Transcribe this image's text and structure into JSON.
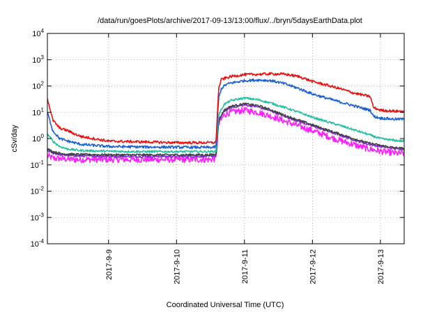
{
  "chart_data": {
    "type": "line",
    "title": "/data/run/goesPlots/archive/2017-09-13/13:00/flux/../bryn/5daysEarthData.plot",
    "xlabel": "Coordinated Universal Time (UTC)",
    "ylabel": "cSv/day",
    "y_scale": "log",
    "ylim": [
      0.0001,
      10000
    ],
    "xlim": [
      -0.9,
      4.35
    ],
    "x_unit": "days since 2017-09-09 00:00 UTC",
    "grid": "dotted",
    "x_ticks": [
      {
        "x": 0,
        "label": "2017-9-9"
      },
      {
        "x": 1,
        "label": "2017-9-10"
      },
      {
        "x": 2,
        "label": "2017-9-11"
      },
      {
        "x": 3,
        "label": "2017-9-12"
      },
      {
        "x": 4,
        "label": "2017-9-13"
      }
    ],
    "y_ticks": [
      {
        "value": 0.0001,
        "base": "10",
        "exp": "-4"
      },
      {
        "value": 0.001,
        "base": "10",
        "exp": "-3"
      },
      {
        "value": 0.01,
        "base": "10",
        "exp": "-2"
      },
      {
        "value": 0.1,
        "base": "10",
        "exp": "-1"
      },
      {
        "value": 1,
        "base": "10",
        "exp": "0"
      },
      {
        "value": 10,
        "base": "10",
        "exp": "1"
      },
      {
        "value": 100,
        "base": "10",
        "exp": "2"
      },
      {
        "value": 1000,
        "base": "10",
        "exp": "3"
      },
      {
        "value": 10000,
        "base": "10",
        "exp": "4"
      }
    ],
    "series": [
      {
        "color": "#e81010",
        "noise": 0.05,
        "x": [
          -0.9,
          -0.82,
          -0.72,
          -0.6,
          -0.5,
          -0.4,
          0.0,
          0.5,
          1.0,
          1.5,
          1.58,
          1.62,
          1.66,
          1.72,
          1.8,
          1.9,
          2.0,
          2.2,
          2.4,
          2.6,
          2.8,
          3.0,
          3.2,
          3.4,
          3.6,
          3.75,
          3.85,
          3.9,
          4.0,
          4.2,
          4.35
        ],
        "y": [
          35,
          5,
          2.5,
          2,
          1.5,
          1.2,
          0.8,
          0.75,
          0.7,
          0.7,
          0.72,
          80,
          180,
          200,
          230,
          250,
          270,
          280,
          290,
          280,
          230,
          150,
          110,
          80,
          55,
          45,
          40,
          15,
          12,
          11,
          11
        ]
      },
      {
        "color": "#1a5fd6",
        "noise": 0.05,
        "x": [
          -0.9,
          -0.82,
          -0.72,
          -0.6,
          -0.4,
          0.0,
          0.5,
          1.0,
          1.5,
          1.58,
          1.62,
          1.66,
          1.72,
          1.8,
          2.0,
          2.2,
          2.4,
          2.6,
          2.8,
          3.0,
          3.2,
          3.4,
          3.6,
          3.75,
          3.85,
          3.9,
          4.0,
          4.2,
          4.35
        ],
        "y": [
          10,
          2,
          1,
          0.8,
          0.6,
          0.5,
          0.48,
          0.47,
          0.46,
          0.48,
          35,
          80,
          110,
          130,
          160,
          170,
          160,
          120,
          80,
          50,
          35,
          25,
          18,
          14,
          12,
          7,
          6,
          5.5,
          5.5
        ]
      },
      {
        "color": "#20c0a0",
        "noise": 0.04,
        "x": [
          -0.9,
          -0.82,
          -0.72,
          -0.6,
          -0.4,
          0.0,
          0.5,
          1.0,
          1.5,
          1.58,
          1.62,
          1.7,
          1.8,
          2.0,
          2.2,
          2.4,
          2.6,
          2.8,
          3.0,
          3.2,
          3.4,
          3.6,
          3.8,
          4.0,
          4.2,
          4.35
        ],
        "y": [
          1.5,
          0.8,
          0.5,
          0.4,
          0.35,
          0.33,
          0.32,
          0.32,
          0.32,
          0.33,
          8,
          20,
          28,
          35,
          30,
          22,
          15,
          10,
          6.5,
          4.5,
          3.2,
          2.2,
          1.5,
          1.0,
          0.85,
          0.8
        ]
      },
      {
        "color": "#404040",
        "noise": 0.04,
        "x": [
          -0.9,
          -0.82,
          -0.7,
          -0.5,
          0.0,
          0.5,
          1.0,
          1.5,
          1.58,
          1.62,
          1.7,
          1.8,
          2.0,
          2.2,
          2.4,
          2.6,
          2.8,
          3.0,
          3.2,
          3.4,
          3.6,
          3.8,
          4.0,
          4.2,
          4.35
        ],
        "y": [
          0.4,
          0.32,
          0.27,
          0.25,
          0.24,
          0.24,
          0.24,
          0.24,
          0.25,
          5,
          12,
          17,
          21,
          18,
          12,
          7.5,
          5,
          3.3,
          2.2,
          1.5,
          1.0,
          0.7,
          0.55,
          0.45,
          0.42
        ]
      },
      {
        "color": "#8a2be2",
        "noise": 0.04,
        "x": [
          -0.9,
          -0.82,
          -0.7,
          -0.5,
          0.0,
          0.5,
          1.0,
          1.5,
          1.58,
          1.62,
          1.7,
          1.8,
          2.0,
          2.2,
          2.4,
          2.6,
          2.8,
          3.0,
          3.2,
          3.4,
          3.6,
          3.8,
          4.0,
          4.2,
          4.35
        ],
        "y": [
          0.35,
          0.28,
          0.24,
          0.22,
          0.21,
          0.21,
          0.21,
          0.21,
          0.22,
          4.5,
          11,
          15,
          19,
          16,
          11,
          6.8,
          4.5,
          3.0,
          2.0,
          1.35,
          0.9,
          0.63,
          0.5,
          0.42,
          0.4
        ]
      },
      {
        "color": "#ff20ff",
        "noise": 0.12,
        "x": [
          -0.9,
          -0.82,
          -0.7,
          -0.5,
          0.0,
          0.5,
          1.0,
          1.5,
          1.58,
          1.62,
          1.7,
          1.8,
          2.0,
          2.2,
          2.4,
          2.6,
          2.8,
          3.0,
          3.2,
          3.4,
          3.6,
          3.8,
          4.0,
          4.2,
          4.35
        ],
        "y": [
          0.22,
          0.18,
          0.17,
          0.16,
          0.16,
          0.16,
          0.16,
          0.16,
          0.17,
          3.5,
          8,
          10,
          12,
          10,
          7,
          4.5,
          3,
          2,
          1.3,
          0.85,
          0.6,
          0.42,
          0.33,
          0.28,
          0.27
        ]
      }
    ]
  }
}
